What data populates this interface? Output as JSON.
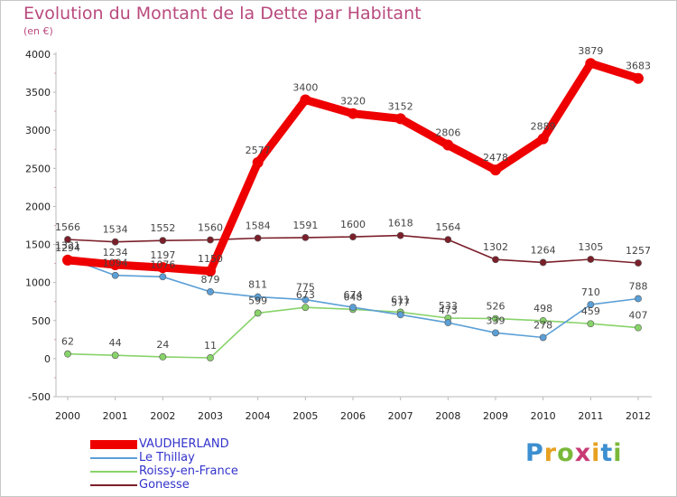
{
  "title": "Evolution du Montant de la Dette par Habitant",
  "subtitle": "(en €)",
  "logo": {
    "letters": [
      "P",
      "r",
      "o",
      "x",
      "i",
      "t",
      "i"
    ],
    "colors": [
      "#3c8fd0",
      "#e8a021",
      "#7ab83a",
      "#c83b75",
      "#e8a021",
      "#3c8fd0",
      "#7ab83a"
    ]
  },
  "chart_data": {
    "type": "line",
    "x": [
      "2000",
      "2001",
      "2002",
      "2003",
      "2004",
      "2005",
      "2006",
      "2007",
      "2008",
      "2009",
      "2010",
      "2011",
      "2012"
    ],
    "ylim": [
      -500,
      4000
    ],
    "yticks": [
      -500,
      0,
      500,
      1000,
      1500,
      2000,
      2500,
      3000,
      3500,
      4000
    ],
    "grid": false,
    "legend_position": "bottom-left",
    "series": [
      {
        "name": "Gonesse",
        "color": "#7b1f2a",
        "values": [
          1566,
          1534,
          1552,
          1560,
          1584,
          1591,
          1600,
          1618,
          1564,
          1302,
          1264,
          1305,
          1257
        ]
      },
      {
        "name": "Roissy-en-France",
        "color": "#88d36a",
        "values": [
          62,
          44,
          24,
          11,
          599,
          673,
          648,
          611,
          533,
          526,
          498,
          459,
          407
        ]
      },
      {
        "name": "Le Thillay",
        "color": "#5b9fd6",
        "values": [
          1321,
          1094,
          1076,
          879,
          811,
          775,
          674,
          577,
          473,
          339,
          278,
          710,
          788
        ]
      },
      {
        "name": "VAUDHERLAND",
        "color": "#ee0000",
        "values": [
          1294,
          1234,
          1197,
          1150,
          2577,
          3400,
          3220,
          3152,
          2806,
          2478,
          2889,
          3879,
          3683
        ]
      }
    ]
  },
  "legend": [
    {
      "label": "VAUDHERLAND",
      "color": "#ee0000"
    },
    {
      "label": "Le Thillay",
      "color": "#5b9fd6"
    },
    {
      "label": "Roissy-en-France",
      "color": "#88d36a"
    },
    {
      "label": "Gonesse",
      "color": "#7b1f2a"
    }
  ]
}
